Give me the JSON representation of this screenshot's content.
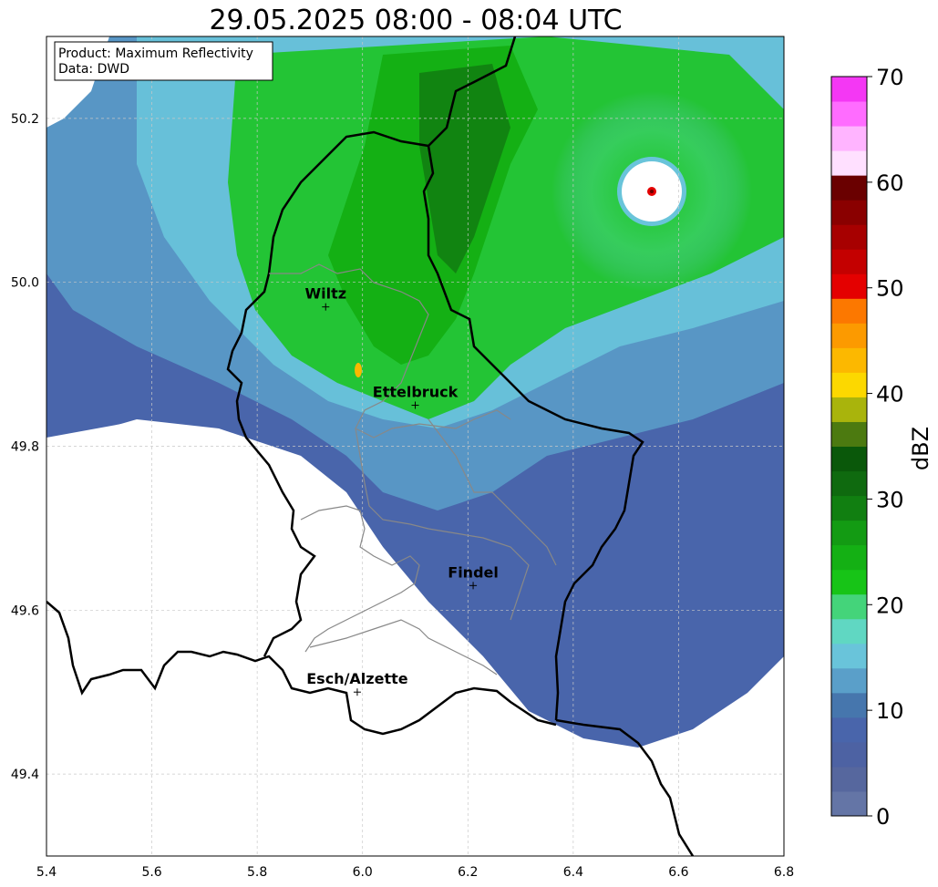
{
  "title": "29.05.2025 08:00 - 08:04 UTC",
  "info_box": {
    "product": "Product: Maximum Reflectivity",
    "data": "Data: DWD"
  },
  "axes": {
    "x_ticks": [
      "5.4",
      "5.6",
      "5.8",
      "6.0",
      "6.2",
      "6.4",
      "6.6",
      "6.8"
    ],
    "y_ticks": [
      "50.2",
      "50.0",
      "49.8",
      "49.6",
      "49.4"
    ],
    "xlim": [
      5.4,
      6.8
    ],
    "ylim": [
      49.3,
      50.3
    ],
    "grid": true
  },
  "cities": [
    {
      "name": "Wiltz",
      "lon": 5.93,
      "lat": 49.97
    },
    {
      "name": "Ettelbruck",
      "lon": 6.1,
      "lat": 49.85
    },
    {
      "name": "Findel",
      "lon": 6.21,
      "lat": 49.63
    },
    {
      "name": "Esch/Alzette",
      "lon": 5.99,
      "lat": 49.5
    }
  ],
  "colorbar": {
    "label": "dBZ",
    "min": 0,
    "max": 70,
    "ticks": [
      "0",
      "10",
      "20",
      "30",
      "40",
      "50",
      "60",
      "70"
    ],
    "colors": [
      "#6475a6",
      "#56679e",
      "#4d62a3",
      "#4965ab",
      "#4676ad",
      "#5a9fc9",
      "#69c4da",
      "#60d7c2",
      "#44d47a",
      "#17c417",
      "#14b014",
      "#139b13",
      "#117f11",
      "#0f6a0f",
      "#0a580a",
      "#4c7a10",
      "#a9b40c",
      "#fcd800",
      "#fcb800",
      "#fc9a00",
      "#fc7800",
      "#e40000",
      "#c40000",
      "#a70000",
      "#8a0000",
      "#6a0000",
      "#ffe0ff",
      "#ffb4ff",
      "#ff6cff",
      "#f437f4"
    ]
  },
  "colors": {
    "border": "#000000",
    "admin": "#888888",
    "grid": "#c8c8c8"
  }
}
